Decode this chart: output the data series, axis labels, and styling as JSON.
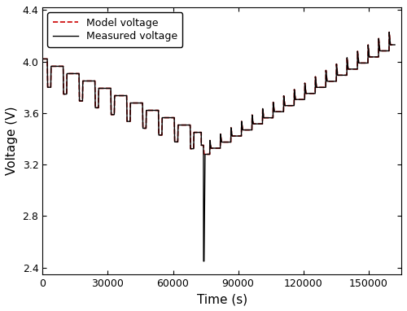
{
  "title": "",
  "xlabel": "Time (s)",
  "ylabel": "Voltage (V)",
  "xlim": [
    0,
    165000
  ],
  "ylim": [
    2.35,
    4.42
  ],
  "yticks": [
    2.4,
    2.8,
    3.2,
    3.6,
    4.0,
    4.4
  ],
  "xticks": [
    0,
    30000,
    60000,
    90000,
    120000,
    150000
  ],
  "model_color": "#cc0000",
  "measured_color": "#000000",
  "model_linestyle": "--",
  "measured_linestyle": "-",
  "model_label": "Model voltage",
  "measured_label": "Measured voltage",
  "figsize": [
    5.0,
    3.82
  ],
  "dpi": 100,
  "discharge_cycles": 10,
  "discharge_end_time": 73000,
  "v_discharge_start": 4.02,
  "v_discharge_end": 3.45,
  "big_dip_time": 75000,
  "big_dip_v": 2.45,
  "big_dip_recover_v": 3.28,
  "charge_cycles": 18,
  "v_charge_start": 3.28,
  "v_charge_end": 4.13,
  "total_time": 162000
}
